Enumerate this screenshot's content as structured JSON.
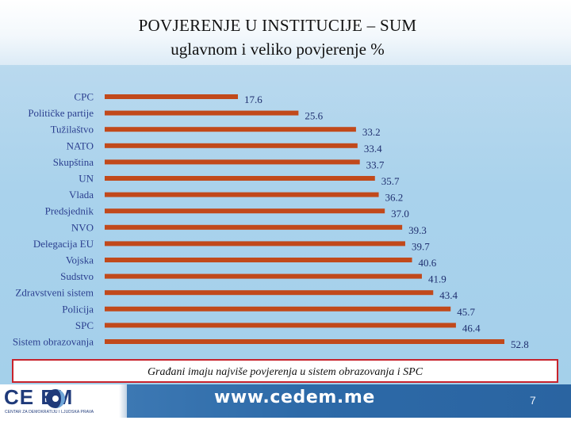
{
  "header": {
    "title": "POVJERENJE U INSTITUCIJE – SUM",
    "subtitle": "uglavnom i veliko povjerenje %"
  },
  "chart_data": {
    "type": "bar",
    "orientation": "horizontal",
    "categories": [
      "CPC",
      "Političke partije",
      "Tužilaštvo",
      "NATO",
      "Skupština",
      "UN",
      "Vlada",
      "Predsjednik",
      "NVO",
      "Delegacija EU",
      "Vojska",
      "Sudstvo",
      "Zdravstveni sistem",
      "Policija",
      "SPC",
      "Sistem obrazovanja"
    ],
    "values": [
      17.6,
      25.6,
      33.2,
      33.4,
      33.7,
      35.7,
      36.2,
      37.0,
      39.3,
      39.7,
      40.6,
      41.9,
      43.4,
      45.7,
      46.4,
      52.8
    ],
    "value_labels": [
      "17.6",
      "25.6",
      "33.2",
      "33.4",
      "33.7",
      "35.7",
      "36.2",
      "37.0",
      "39.3",
      "39.7",
      "40.6",
      "41.9",
      "43.4",
      "45.7",
      "46.4",
      "52.8"
    ],
    "title": "POVJERENJE U INSTITUCIJE – SUM",
    "subtitle": "uglavnom i veliko povjerenje %",
    "xlabel": "",
    "ylabel": "",
    "xlim": [
      0,
      52.8
    ],
    "grid": false,
    "legend": "none",
    "bar_color": "#c1491b"
  },
  "note": {
    "text": "Građani imaju najviše povjerenja u sistem obrazovanja i SPC"
  },
  "footer": {
    "logo_text": "CE  EM",
    "logo_subtext": "CENTAR ZA DEMOKRATIJU I LJUDSKA PRAVA",
    "url": "www.cedem.me",
    "page_number": "7"
  }
}
